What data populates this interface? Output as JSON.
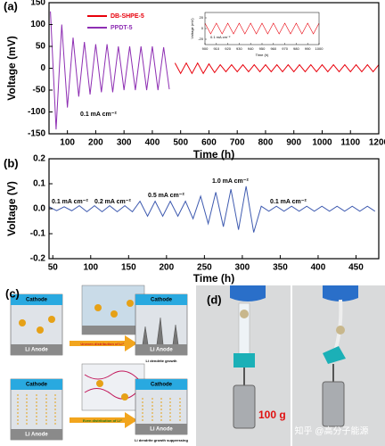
{
  "chart_data": [
    {
      "type": "line",
      "panel_label": "(a)",
      "ylabel": "Voltage (mV)",
      "xlabel": "Time (h)",
      "xlim": [
        35,
        1200
      ],
      "xticks": [
        100,
        200,
        300,
        400,
        500,
        600,
        700,
        800,
        900,
        1000,
        1100,
        1200
      ],
      "ylim": [
        -150,
        150
      ],
      "yticks": [
        -150,
        -100,
        -50,
        0,
        50,
        100,
        150
      ],
      "legend": "upper left",
      "annotations": [
        "0.1 mA cm⁻²"
      ],
      "series": [
        {
          "name": "DB-SHPE-5",
          "color": "#e8000b",
          "x": [
            480,
            500,
            520,
            540,
            560,
            580,
            600,
            620,
            640,
            660,
            680,
            700,
            720,
            740,
            760,
            780,
            800,
            820,
            840,
            860,
            880,
            900,
            920,
            940,
            960,
            980,
            1000,
            1020,
            1040,
            1060,
            1080,
            1100,
            1120,
            1140,
            1160,
            1180,
            1200
          ],
          "values": [
            12,
            -12,
            12,
            -12,
            12,
            -12,
            10,
            -10,
            8,
            -8,
            8,
            -8,
            8,
            -8,
            8,
            -8,
            8,
            -8,
            8,
            -8,
            8,
            -8,
            8,
            -8,
            8,
            -8,
            8,
            -8,
            8,
            -8,
            8,
            -8,
            8,
            -8,
            8,
            -8,
            8
          ]
        },
        {
          "name": "PPDT-5",
          "color": "#8e2fb3",
          "x": [
            40,
            60,
            80,
            100,
            120,
            140,
            160,
            180,
            200,
            220,
            240,
            260,
            280,
            300,
            320,
            340,
            360,
            380,
            400,
            420,
            440,
            460
          ],
          "values": [
            130,
            -140,
            100,
            -90,
            70,
            -65,
            60,
            -60,
            55,
            -55,
            55,
            -55,
            50,
            -50,
            50,
            -50,
            50,
            -50,
            50,
            -50,
            48,
            -48
          ]
        }
      ]
    },
    {
      "type": "line",
      "ylabel": "Voltage (mV)",
      "xlabel": "Time (h)",
      "xlim": [
        900,
        1000
      ],
      "xticks": [
        900,
        910,
        920,
        930,
        940,
        950,
        960,
        970,
        980,
        990,
        1000
      ],
      "ylim": [
        -30,
        30
      ],
      "yticks": [
        -20,
        0,
        20
      ],
      "annotations": [
        "0.1 mA cm⁻²"
      ],
      "series": [
        {
          "color": "#e8000b",
          "x": [
            900,
            905,
            910,
            915,
            920,
            925,
            930,
            935,
            940,
            945,
            950,
            955,
            960,
            965,
            970,
            975,
            980,
            985,
            990,
            995,
            1000
          ],
          "values": [
            10,
            -10,
            10,
            -10,
            10,
            -10,
            10,
            -10,
            10,
            -10,
            10,
            -10,
            10,
            -10,
            10,
            -10,
            10,
            -10,
            10,
            -10,
            10
          ]
        }
      ]
    },
    {
      "type": "line",
      "panel_label": "(b)",
      "ylabel": "Voltage (V)",
      "xlabel": "Time (h)",
      "xlim": [
        45,
        480
      ],
      "xticks": [
        50,
        100,
        150,
        200,
        250,
        300,
        350,
        400,
        450
      ],
      "ylim": [
        -0.2,
        0.2
      ],
      "yticks": [
        -0.2,
        -0.1,
        {
          "value": 0,
          "label": "0.0"
        },
        0.1,
        0.2
      ],
      "annotations": [
        "0.1 mA cm⁻²",
        "0.2 mA cm⁻²",
        "0.5 mA cm⁻²",
        "1.0 mA cm⁻²",
        "0.1 mA cm⁻²"
      ],
      "series": [
        {
          "color": "#3f5bb0",
          "x": [
            45,
            55,
            65,
            75,
            85,
            95,
            105,
            115,
            125,
            135,
            145,
            155,
            165,
            175,
            185,
            195,
            205,
            215,
            225,
            235,
            245,
            255,
            265,
            275,
            285,
            295,
            305,
            315,
            325,
            335,
            345,
            355,
            365,
            375,
            385,
            395,
            405,
            415,
            425,
            435,
            445,
            455,
            465,
            475
          ],
          "values": [
            0.008,
            -0.008,
            0.008,
            -0.008,
            0.012,
            -0.012,
            0.012,
            -0.012,
            0.012,
            -0.012,
            0.012,
            -0.012,
            0.03,
            -0.03,
            0.03,
            -0.03,
            0.03,
            -0.03,
            0.03,
            -0.04,
            0.05,
            -0.06,
            0.066,
            -0.072,
            0.078,
            -0.084,
            0.09,
            -0.095,
            0.01,
            -0.01,
            0.01,
            -0.01,
            0.01,
            -0.01,
            0.01,
            -0.01,
            0.01,
            -0.01,
            0.01,
            -0.01,
            0.01,
            -0.01,
            0.01,
            -0.01
          ]
        }
      ]
    }
  ],
  "diagram": {
    "panel_label": "(c)",
    "cathode": "Cathode",
    "anode": "Li Anode",
    "uneven": "Uneven distribution of Li⁺",
    "growth": "Li dendrite growth",
    "even": "Even distribution of Li⁺",
    "suppressing": "Li dendrite growth suppressing"
  },
  "photo": {
    "panel_label": "(d)",
    "weight": "100 g",
    "watermark": "知乎 @高分子能源"
  }
}
